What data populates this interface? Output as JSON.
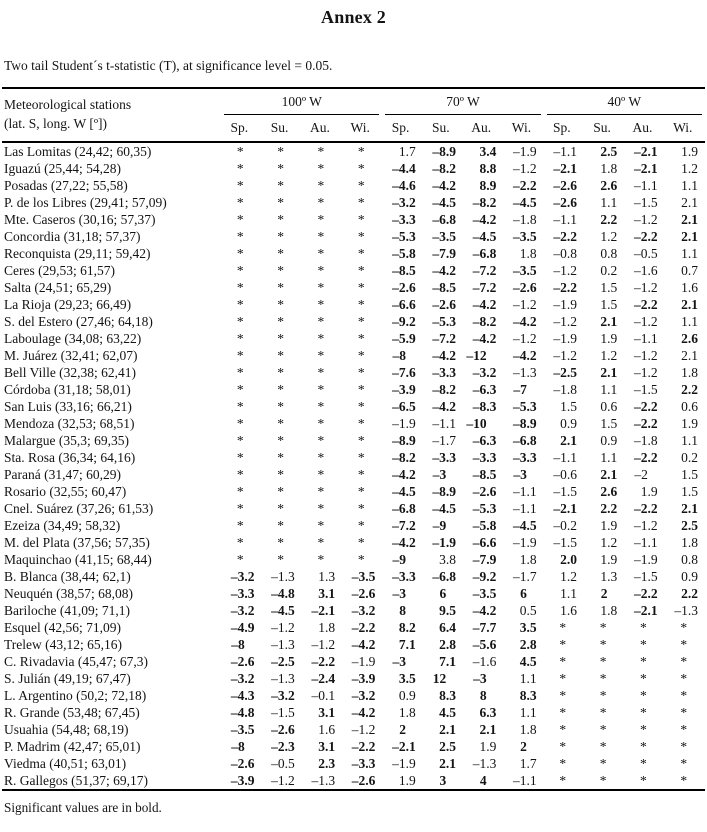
{
  "page": {
    "title": "Annex 2",
    "caption": "Two tail Student´s t-statistic (T), at significance level = 0.05.",
    "footnote": "Significant values are in bold."
  },
  "colors": {
    "text": "#141414",
    "background": "#ffffff",
    "rule": "#000000"
  },
  "table": {
    "station_header_line1": "Meteorological stations",
    "station_header_line2": "(lat. S, long. W [º])",
    "groups": [
      {
        "label": "100º W"
      },
      {
        "label": "70º W"
      },
      {
        "label": "40º W"
      }
    ],
    "season_labels": [
      "Sp.",
      "Su.",
      "Au.",
      "Wi."
    ],
    "not_significant_symbol": "*",
    "rows": [
      {
        "station": "Las Lomitas (24,42; 60,35)",
        "values": [
          "*",
          "*",
          "*",
          "*",
          "1.7",
          "–8.9",
          "3.4",
          "–1.9",
          "–1.1",
          "2.5",
          "–2.1",
          "1.9"
        ],
        "bold": [
          0,
          0,
          0,
          0,
          0,
          1,
          1,
          0,
          0,
          1,
          1,
          0
        ]
      },
      {
        "station": "Iguazú (25,44; 54,28)",
        "values": [
          "*",
          "*",
          "*",
          "*",
          "–4.4",
          "–8.2",
          "8.8",
          "–1.2",
          "–2.1",
          "1.8",
          "–2.1",
          "1.2"
        ],
        "bold": [
          0,
          0,
          0,
          0,
          1,
          1,
          1,
          0,
          1,
          0,
          1,
          0
        ]
      },
      {
        "station": "Posadas (27,22; 55,58)",
        "values": [
          "*",
          "*",
          "*",
          "*",
          "–4.6",
          "–4.2",
          "8.9",
          "–2.2",
          "–2.6",
          "2.6",
          "–1.1",
          "1.1"
        ],
        "bold": [
          0,
          0,
          0,
          0,
          1,
          1,
          1,
          1,
          1,
          1,
          0,
          0
        ]
      },
      {
        "station": "P. de los Libres (29,41; 57,09)",
        "values": [
          "*",
          "*",
          "*",
          "*",
          "–3.2",
          "–4.5",
          "–8.2",
          "–4.5",
          "–2.6",
          "1.1",
          "–1.5",
          "2.1"
        ],
        "bold": [
          0,
          0,
          0,
          0,
          1,
          1,
          1,
          1,
          1,
          0,
          0,
          0
        ]
      },
      {
        "station": "Mte. Caseros (30,16; 57,37)",
        "values": [
          "*",
          "*",
          "*",
          "*",
          "–3.3",
          "–6.8",
          "–4.2",
          "–1.8",
          "–1.1",
          "2.2",
          "–1.2",
          "2.1"
        ],
        "bold": [
          0,
          0,
          0,
          0,
          1,
          1,
          1,
          0,
          0,
          1,
          0,
          1
        ]
      },
      {
        "station": "Concordia (31,18; 57,37)",
        "values": [
          "*",
          "*",
          "*",
          "*",
          "–5.3",
          "–3.5",
          "–4.5",
          "–3.5",
          "–2.2",
          "1.2",
          "–2.2",
          "2.1"
        ],
        "bold": [
          0,
          0,
          0,
          0,
          1,
          1,
          1,
          1,
          1,
          0,
          1,
          1
        ]
      },
      {
        "station": "Reconquista (29,11; 59,42)",
        "values": [
          "*",
          "*",
          "*",
          "*",
          "–5.8",
          "–7.9",
          "–6.8",
          "1.8",
          "–0.8",
          "0.8",
          "–0.5",
          "1.1"
        ],
        "bold": [
          0,
          0,
          0,
          0,
          1,
          1,
          1,
          0,
          0,
          0,
          0,
          0
        ]
      },
      {
        "station": "Ceres (29,53; 61,57)",
        "values": [
          "*",
          "*",
          "*",
          "*",
          "–8.5",
          "–4.2",
          "–7.2",
          "–3.5",
          "–1.2",
          "0.2",
          "–1.6",
          "0.7"
        ],
        "bold": [
          0,
          0,
          0,
          0,
          1,
          1,
          1,
          1,
          0,
          0,
          0,
          0
        ]
      },
      {
        "station": "Salta (24,51; 65,29)",
        "values": [
          "*",
          "*",
          "*",
          "*",
          "–2.6",
          "–8.5",
          "–7.2",
          "–2.6",
          "–2.2",
          "1.5",
          "–1.2",
          "1.6"
        ],
        "bold": [
          0,
          0,
          0,
          0,
          1,
          1,
          1,
          1,
          1,
          0,
          0,
          0
        ]
      },
      {
        "station": "La Rioja (29,23; 66,49)",
        "values": [
          "*",
          "*",
          "*",
          "*",
          "–6.6",
          "–2.6",
          "–4.2",
          "–1.2",
          "–1.9",
          "1.5",
          "–2.2",
          "2.1"
        ],
        "bold": [
          0,
          0,
          0,
          0,
          1,
          1,
          1,
          0,
          0,
          0,
          1,
          1
        ]
      },
      {
        "station": "S. del Estero (27,46; 64,18)",
        "values": [
          "*",
          "*",
          "*",
          "*",
          "–9.2",
          "–5.3",
          "–8.2",
          "–4.2",
          "–1.2",
          "2.1",
          "–1.2",
          "1.1"
        ],
        "bold": [
          0,
          0,
          0,
          0,
          1,
          1,
          1,
          1,
          0,
          1,
          0,
          0
        ]
      },
      {
        "station": "Laboulage (34,08; 63,22)",
        "values": [
          "*",
          "*",
          "*",
          "*",
          "–5.9",
          "–7.2",
          "–4.2",
          "–1.2",
          "–1.9",
          "1.9",
          "–1.1",
          "2.6"
        ],
        "bold": [
          0,
          0,
          0,
          0,
          1,
          1,
          1,
          0,
          0,
          0,
          0,
          1
        ]
      },
      {
        "station": "M. Juárez (32,41; 62,07)",
        "values": [
          "*",
          "*",
          "*",
          "*",
          "–8",
          "–4.2",
          "–12",
          "–4.2",
          "–1.2",
          "1.2",
          "–1.2",
          "2.1"
        ],
        "bold": [
          0,
          0,
          0,
          0,
          1,
          1,
          1,
          1,
          0,
          0,
          0,
          0
        ]
      },
      {
        "station": "Bell Ville (32,38; 62,41)",
        "values": [
          "*",
          "*",
          "*",
          "*",
          "–7.6",
          "–3.3",
          "–3.2",
          "–1.3",
          "–2.5",
          "2.1",
          "–1.2",
          "1.8"
        ],
        "bold": [
          0,
          0,
          0,
          0,
          1,
          1,
          1,
          0,
          1,
          1,
          0,
          0
        ]
      },
      {
        "station": "Córdoba (31,18; 58,01)",
        "values": [
          "*",
          "*",
          "*",
          "*",
          "–3.9",
          "–8.2",
          "–6.3",
          "–7",
          "–1.8",
          "1.1",
          "–1.5",
          "2.2"
        ],
        "bold": [
          0,
          0,
          0,
          0,
          1,
          1,
          1,
          1,
          0,
          0,
          0,
          1
        ]
      },
      {
        "station": "San Luis (33,16; 66,21)",
        "values": [
          "*",
          "*",
          "*",
          "*",
          "–6.5",
          "–4.2",
          "–8.3",
          "–5.3",
          "1.5",
          "0.6",
          "–2.2",
          "0.6"
        ],
        "bold": [
          0,
          0,
          0,
          0,
          1,
          1,
          1,
          1,
          0,
          0,
          1,
          0
        ]
      },
      {
        "station": "Mendoza (32,53; 68,51)",
        "values": [
          "*",
          "*",
          "*",
          "*",
          "–1.9",
          "–1.1",
          "–10",
          "–8.9",
          "0.9",
          "1.5",
          "–2.2",
          "1.9"
        ],
        "bold": [
          0,
          0,
          0,
          0,
          0,
          0,
          1,
          1,
          0,
          0,
          1,
          0
        ]
      },
      {
        "station": "Malargue (35,3; 69,35)",
        "values": [
          "*",
          "*",
          "*",
          "*",
          "–8.9",
          "–1.7",
          "–6.3",
          "–6.8",
          "2.1",
          "0.9",
          "–1.8",
          "1.1"
        ],
        "bold": [
          0,
          0,
          0,
          0,
          1,
          0,
          1,
          1,
          1,
          0,
          0,
          0
        ]
      },
      {
        "station": "Sta. Rosa (36,34; 64,16)",
        "values": [
          "*",
          "*",
          "*",
          "*",
          "–8.2",
          "–3.3",
          "–3.3",
          "–3.3",
          "–1.1",
          "1.1",
          "–2.2",
          "0.2"
        ],
        "bold": [
          0,
          0,
          0,
          0,
          1,
          1,
          1,
          1,
          0,
          0,
          1,
          0
        ]
      },
      {
        "station": "Paraná (31,47; 60,29)",
        "values": [
          "*",
          "*",
          "*",
          "*",
          "–4.2",
          "–3",
          "–8.5",
          "–3",
          "–0.6",
          "2.1",
          "–2",
          "1.5"
        ],
        "bold": [
          0,
          0,
          0,
          0,
          1,
          1,
          1,
          1,
          0,
          1,
          0,
          0
        ]
      },
      {
        "station": "Rosario (32,55; 60,47)",
        "values": [
          "*",
          "*",
          "*",
          "*",
          "–4.5",
          "–8.9",
          "–2.6",
          "–1.1",
          "–1.5",
          "2.6",
          "1.9",
          "1.5"
        ],
        "bold": [
          0,
          0,
          0,
          0,
          1,
          1,
          1,
          0,
          0,
          1,
          0,
          0
        ]
      },
      {
        "station": "Cnel. Suárez (37,26; 61,53)",
        "values": [
          "*",
          "*",
          "*",
          "*",
          "–6.8",
          "–4.5",
          "–5.3",
          "–1.1",
          "–2.1",
          "2.2",
          "–2.2",
          "2.1"
        ],
        "bold": [
          0,
          0,
          0,
          0,
          1,
          1,
          1,
          0,
          1,
          1,
          1,
          1
        ]
      },
      {
        "station": "Ezeiza (34,49; 58,32)",
        "values": [
          "*",
          "*",
          "*",
          "*",
          "–7.2",
          "–9",
          "–5.8",
          "–4.5",
          "–0.2",
          "1.9",
          "–1.2",
          "2.5"
        ],
        "bold": [
          0,
          0,
          0,
          0,
          1,
          1,
          1,
          1,
          0,
          0,
          0,
          1
        ]
      },
      {
        "station": "M. del Plata (37,56; 57,35)",
        "values": [
          "*",
          "*",
          "*",
          "*",
          "–4.2",
          "–1.9",
          "–6.6",
          "–1.9",
          "–1.5",
          "1.2",
          "–1.1",
          "1.8"
        ],
        "bold": [
          0,
          0,
          0,
          0,
          1,
          1,
          1,
          0,
          0,
          0,
          0,
          0
        ]
      },
      {
        "station": "Maquinchao (41,15; 68,44)",
        "values": [
          "*",
          "*",
          "*",
          "*",
          "–9",
          "3.8",
          "–7.9",
          "1.8",
          "2.0",
          "1.9",
          "–1.9",
          "0.8"
        ],
        "bold": [
          0,
          0,
          0,
          0,
          1,
          0,
          1,
          0,
          1,
          0,
          0,
          0
        ]
      },
      {
        "station": "B. Blanca (38,44; 62,1)",
        "values": [
          "–3.2",
          "–1.3",
          "1.3",
          "–3.5",
          "–3.3",
          "–6.8",
          "–9.2",
          "–1.7",
          "1.2",
          "1.3",
          "–1.5",
          "0.9"
        ],
        "bold": [
          1,
          0,
          0,
          1,
          1,
          1,
          1,
          0,
          0,
          0,
          0,
          0
        ]
      },
      {
        "station": "Neuquén (38,57; 68,08)",
        "values": [
          "–3.3",
          "–4.8",
          "3.1",
          "–2.6",
          "–3",
          "6",
          "–3.5",
          "6",
          "1.1",
          "2",
          "–2.2",
          "2.2"
        ],
        "bold": [
          1,
          1,
          1,
          1,
          1,
          1,
          1,
          1,
          0,
          1,
          1,
          1
        ]
      },
      {
        "station": "Bariloche (41,09; 71,1)",
        "values": [
          "–3.2",
          "–4.5",
          "–2.1",
          "–3.2",
          "8",
          "9.5",
          "–4.2",
          "0.5",
          "1.6",
          "1.8",
          "–2.1",
          "–1.3"
        ],
        "bold": [
          1,
          1,
          1,
          1,
          1,
          1,
          1,
          0,
          0,
          0,
          1,
          0
        ]
      },
      {
        "station": "Esquel (42,56; 71,09)",
        "values": [
          "–4.9",
          "–1.2",
          "1.8",
          "–2.2",
          "8.2",
          "6.4",
          "–7.7",
          "3.5",
          "*",
          "*",
          "*",
          "*"
        ],
        "bold": [
          1,
          0,
          0,
          1,
          1,
          1,
          1,
          1,
          0,
          0,
          0,
          0
        ]
      },
      {
        "station": "Trelew (43,12; 65,16)",
        "values": [
          "–8",
          "–1.3",
          "–1.2",
          "–4.2",
          "7.1",
          "2.8",
          "–5.6",
          "2.8",
          "*",
          "*",
          "*",
          "*"
        ],
        "bold": [
          1,
          0,
          0,
          1,
          1,
          1,
          1,
          1,
          0,
          0,
          0,
          0
        ]
      },
      {
        "station": "C. Rivadavia (45,47; 67,3)",
        "values": [
          "–2.6",
          "–2.5",
          "–2.2",
          "–1.9",
          "–3",
          "7.1",
          "–1.6",
          "4.5",
          "*",
          "*",
          "*",
          "*"
        ],
        "bold": [
          1,
          1,
          1,
          0,
          1,
          1,
          0,
          1,
          0,
          0,
          0,
          0
        ]
      },
      {
        "station": "S. Julián (49,19; 67,47)",
        "values": [
          "–3.2",
          "–1.3",
          "–2.4",
          "–3.9",
          "3.5",
          "12",
          "–3",
          "1.1",
          "*",
          "*",
          "*",
          "*"
        ],
        "bold": [
          1,
          0,
          1,
          1,
          1,
          1,
          1,
          0,
          0,
          0,
          0,
          0
        ]
      },
      {
        "station": "L. Argentino (50,2; 72,18)",
        "values": [
          "–4.3",
          "–3.2",
          "–0.1",
          "–3.2",
          "0.9",
          "8.3",
          "8",
          "8.3",
          "*",
          "*",
          "*",
          "*"
        ],
        "bold": [
          1,
          1,
          0,
          1,
          0,
          1,
          1,
          1,
          0,
          0,
          0,
          0
        ]
      },
      {
        "station": "R. Grande (53,48; 67,45)",
        "values": [
          "–4.8",
          "–1.5",
          "3.1",
          "–4.2",
          "1.8",
          "4.5",
          "6.3",
          "1.1",
          "*",
          "*",
          "*",
          "*"
        ],
        "bold": [
          1,
          0,
          1,
          1,
          0,
          1,
          1,
          0,
          0,
          0,
          0,
          0
        ]
      },
      {
        "station": "Usuahia (54,48; 68,19)",
        "values": [
          "–3.5",
          "–2.6",
          "1.6",
          "–1.2",
          "2",
          "2.1",
          "2.1",
          "1.8",
          "*",
          "*",
          "*",
          "*"
        ],
        "bold": [
          1,
          1,
          0,
          0,
          1,
          1,
          1,
          0,
          0,
          0,
          0,
          0
        ]
      },
      {
        "station": "P. Madrim (42,47; 65,01)",
        "values": [
          "–8",
          "–2.3",
          "3.1",
          "–2.2",
          "–2.1",
          "2.5",
          "1.9",
          "2",
          "*",
          "*",
          "*",
          "*"
        ],
        "bold": [
          1,
          1,
          1,
          1,
          1,
          1,
          0,
          1,
          0,
          0,
          0,
          0
        ]
      },
      {
        "station": "Viedma (40,51; 63,01)",
        "values": [
          "–2.6",
          "–0.5",
          "2.3",
          "–3.3",
          "–1.9",
          "2.1",
          "–1.3",
          "1.7",
          "*",
          "*",
          "*",
          "*"
        ],
        "bold": [
          1,
          0,
          1,
          1,
          0,
          1,
          0,
          0,
          0,
          0,
          0,
          0
        ]
      },
      {
        "station": "R. Gallegos (51,37; 69,17)",
        "values": [
          "–3.9",
          "–1.2",
          "–1.3",
          "–2.6",
          "1.9",
          "3",
          "4",
          "–1.1",
          "*",
          "*",
          "*",
          "*"
        ],
        "bold": [
          1,
          0,
          0,
          1,
          0,
          1,
          1,
          0,
          0,
          0,
          0,
          0
        ]
      }
    ]
  }
}
